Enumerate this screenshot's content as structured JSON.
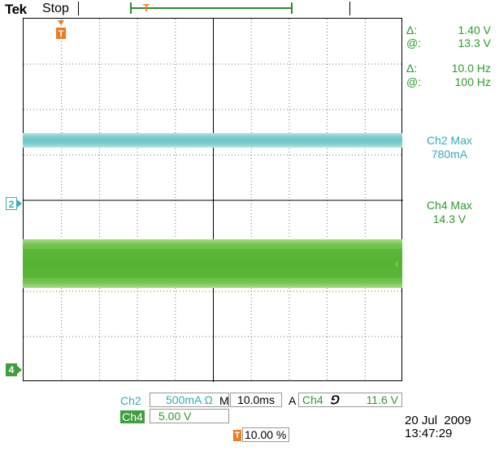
{
  "topbar": {
    "brand": "Tek",
    "state": "Stop",
    "trigger_glyph": "T"
  },
  "markers": {
    "ch2": "2",
    "ch4": "4",
    "trigger": "T"
  },
  "cursors": {
    "delta_voltage_symbol": "Δ:",
    "delta_voltage": "1.40 V",
    "at_voltage_symbol": "@:",
    "at_voltage": "13.3 V",
    "delta_freq_symbol": "Δ:",
    "delta_freq": "10.0 Hz",
    "at_freq_symbol": "@:",
    "at_freq": "100 Hz"
  },
  "measurements": [
    {
      "label": "Ch2 Max",
      "value": "780mA"
    },
    {
      "label": "Ch4 Max",
      "value": "14.3 V"
    }
  ],
  "settings": {
    "ch2_label": "Ch2",
    "ch2_scale": "500mA Ω",
    "ch4_label": "Ch4",
    "ch4_scale": "5.00 V",
    "horizontal_label": "M",
    "timebase": "10.0ms",
    "trigger_mode": "A",
    "trigger_source": "Ch4",
    "trigger_edge": "⅁",
    "trigger_level": "11.6 V",
    "trigger_position_icon": "T",
    "trigger_position": "10.00 %"
  },
  "datetime": {
    "date": "20 Jul  2009",
    "time": "13:47:29"
  },
  "colors": {
    "ch2": "#33adb5",
    "ch4": "#3f9e3f",
    "trigger": "#f07a20",
    "readout": "#2e9a2e"
  },
  "icons": {
    "trigger_marker": "trigger-t-icon",
    "channel_marker": "channel-ground-icon"
  }
}
